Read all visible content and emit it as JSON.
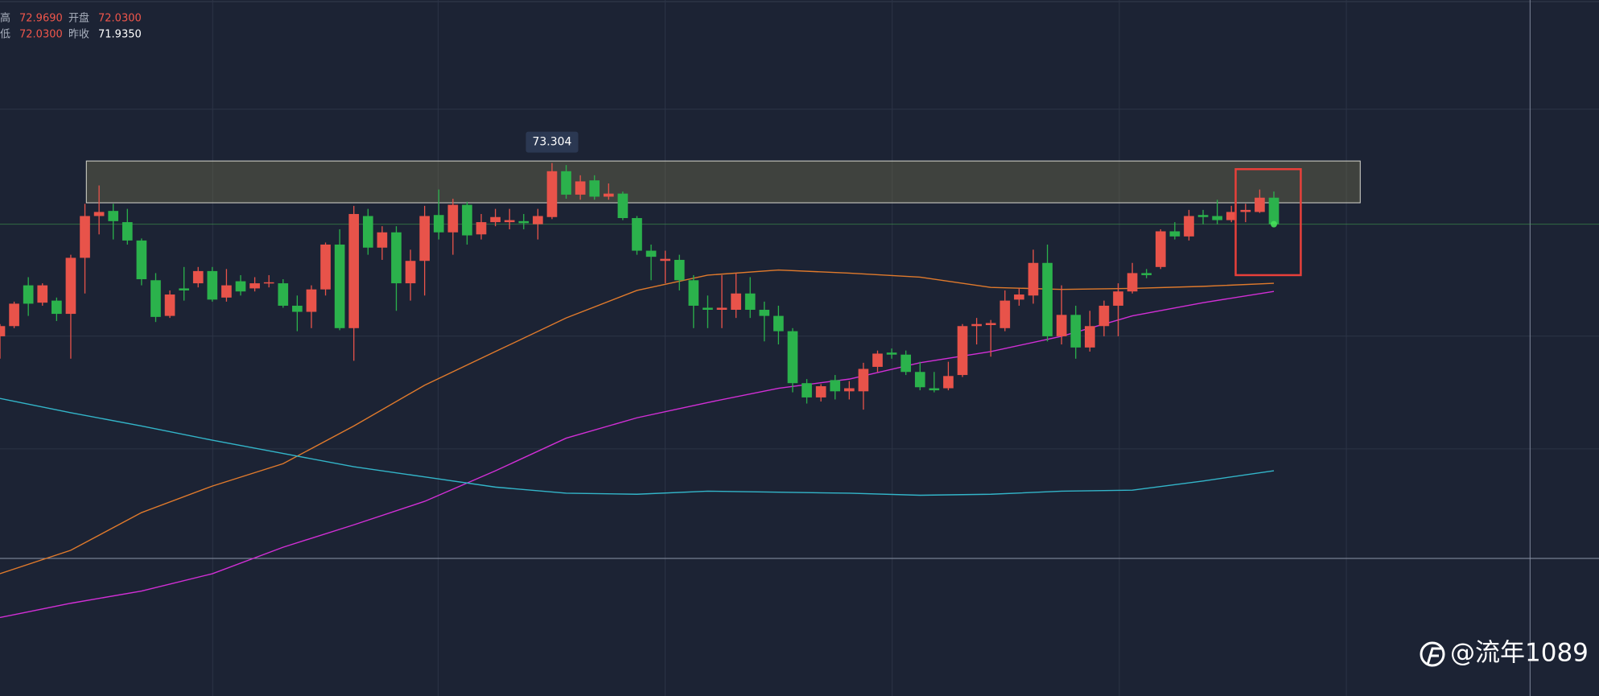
{
  "header": [
    {
      "label": "高",
      "value": "72.9690"
    },
    {
      "label": "开盘",
      "value": "72.0300"
    },
    {
      "label": "低",
      "value": "72.0300"
    },
    {
      "label": "昨收",
      "value": "71.9350"
    }
  ],
  "watermark": "@流年1089",
  "chart_data": {
    "type": "candlestick",
    "up_color": "#e8534a",
    "down_color": "#2bb24c",
    "xlim": [
      0,
      112.97
    ],
    "ylim": [
      67.028,
      75.224
    ],
    "open": [
      71.264,
      71.384,
      71.864,
      71.66,
      71.684,
      71.528,
      72.188,
      72.68,
      72.74,
      72.608,
      72.392,
      71.924,
      71.504,
      71.828,
      71.888,
      72.032,
      71.72,
      71.912,
      71.828,
      71.888,
      71.888,
      71.624,
      71.552,
      71.816,
      72.344,
      71.36,
      72.68,
      72.308,
      72.488,
      71.888,
      72.152,
      72.692,
      72.488,
      72.812,
      72.464,
      72.608,
      72.608,
      72.62,
      72.584,
      72.668,
      73.208,
      72.932,
      73.1,
      72.908,
      72.944,
      72.656,
      72.272,
      72.152,
      72.164,
      71.924,
      71.6,
      71.576,
      71.576,
      71.768,
      71.576,
      71.504,
      71.324,
      70.712,
      70.544,
      70.748,
      70.616,
      70.616,
      70.904,
      71.072,
      71.048,
      70.844,
      70.652,
      70.652,
      70.808,
      71.384,
      71.396,
      71.36,
      71.696,
      71.744,
      72.128,
      71.264,
      71.516,
      71.132,
      71.384,
      71.624,
      71.792,
      72.008,
      72.08,
      72.5,
      72.44,
      72.692,
      72.68,
      72.632,
      72.728,
      72.728,
      72.896
    ],
    "high": [
      71.408,
      71.672,
      71.96,
      71.888,
      71.72,
      72.224,
      72.824,
      73.04,
      72.824,
      72.764,
      72.416,
      72.008,
      71.804,
      72.08,
      72.08,
      72.08,
      72.056,
      71.984,
      71.96,
      71.984,
      71.936,
      71.744,
      71.864,
      72.368,
      72.524,
      72.8,
      72.764,
      72.56,
      72.56,
      72.284,
      72.8,
      72.992,
      72.884,
      72.848,
      72.704,
      72.764,
      72.764,
      72.704,
      72.764,
      73.304,
      73.28,
      73.16,
      73.16,
      73.064,
      72.968,
      72.68,
      72.344,
      72.272,
      72.224,
      71.984,
      71.744,
      71.984,
      72.008,
      71.96,
      71.672,
      71.624,
      71.36,
      70.76,
      70.7,
      70.808,
      70.736,
      70.952,
      71.096,
      71.12,
      71.096,
      70.964,
      70.844,
      70.964,
      71.408,
      71.48,
      71.456,
      71.804,
      71.828,
      72.284,
      72.344,
      71.864,
      71.624,
      71.564,
      71.684,
      71.888,
      72.128,
      72.056,
      72.524,
      72.608,
      72.752,
      72.752,
      72.872,
      72.8,
      72.824,
      72.992,
      72.969
    ],
    "low": [
      71.0,
      71.36,
      71.504,
      71.624,
      71.444,
      71.0,
      71.768,
      72.464,
      72.404,
      72.344,
      71.864,
      71.432,
      71.48,
      71.684,
      71.84,
      71.672,
      71.672,
      71.744,
      71.792,
      71.84,
      71.6,
      71.324,
      71.36,
      71.744,
      71.336,
      70.976,
      72.224,
      72.164,
      71.564,
      71.684,
      71.744,
      72.404,
      72.224,
      72.344,
      72.404,
      72.56,
      72.524,
      72.524,
      72.404,
      72.644,
      72.884,
      72.872,
      72.872,
      72.872,
      72.632,
      72.224,
      71.924,
      71.888,
      71.804,
      71.36,
      71.36,
      71.36,
      71.48,
      71.48,
      71.204,
      71.168,
      70.604,
      70.472,
      70.496,
      70.52,
      70.52,
      70.4,
      70.844,
      71.0,
      70.808,
      70.628,
      70.604,
      70.628,
      70.784,
      71.168,
      71.024,
      71.324,
      71.624,
      71.648,
      71.204,
      71.168,
      71.0,
      71.084,
      71.264,
      71.264,
      71.768,
      71.948,
      72.056,
      72.404,
      72.392,
      72.584,
      72.584,
      72.608,
      72.608,
      72.716,
      72.584
    ],
    "close": [
      71.384,
      71.648,
      71.648,
      71.864,
      71.528,
      72.188,
      72.68,
      72.728,
      72.62,
      72.392,
      71.936,
      71.492,
      71.756,
      71.804,
      72.032,
      71.696,
      71.864,
      71.792,
      71.888,
      71.9,
      71.624,
      71.552,
      71.816,
      72.344,
      71.36,
      72.704,
      72.308,
      72.488,
      71.888,
      72.152,
      72.68,
      72.488,
      72.812,
      72.452,
      72.608,
      72.668,
      72.632,
      72.596,
      72.68,
      73.208,
      72.932,
      73.088,
      72.908,
      72.944,
      72.656,
      72.272,
      72.2,
      72.176,
      71.924,
      71.624,
      71.576,
      71.6,
      71.768,
      71.576,
      71.504,
      71.324,
      70.712,
      70.544,
      70.676,
      70.616,
      70.652,
      70.88,
      71.06,
      71.048,
      70.844,
      70.664,
      70.628,
      70.796,
      71.384,
      71.408,
      71.42,
      71.684,
      71.756,
      72.128,
      71.264,
      71.516,
      71.132,
      71.384,
      71.624,
      71.792,
      72.008,
      71.984,
      72.5,
      72.44,
      72.68,
      72.668,
      72.632,
      72.728,
      72.752,
      72.896,
      72.584
    ],
    "high_label_index": 39,
    "series": [
      {
        "color": "#e07a2c",
        "x": [
          0,
          5,
          10,
          15,
          20,
          25,
          30,
          35,
          40,
          45,
          50,
          55,
          60,
          65,
          70,
          75,
          80,
          85,
          90
        ],
        "values": [
          68.468,
          68.744,
          69.188,
          69.5,
          69.764,
          70.208,
          70.688,
          71.084,
          71.48,
          71.804,
          71.984,
          72.044,
          72.008,
          71.96,
          71.84,
          71.816,
          71.828,
          71.852,
          71.888
        ]
      },
      {
        "color": "#d22fd6",
        "x": [
          0,
          5,
          10,
          15,
          20,
          25,
          30,
          35,
          40,
          45,
          50,
          55,
          60,
          65,
          70,
          75,
          80,
          85,
          90
        ],
        "values": [
          67.952,
          68.12,
          68.264,
          68.468,
          68.78,
          69.044,
          69.32,
          69.68,
          70.064,
          70.304,
          70.484,
          70.652,
          70.76,
          70.952,
          71.084,
          71.264,
          71.504,
          71.66,
          71.792
        ]
      },
      {
        "color": "#33b5c9",
        "x": [
          0,
          5,
          10,
          15,
          20,
          25,
          30,
          35,
          40,
          45,
          50,
          55,
          60,
          65,
          70,
          75,
          80,
          85,
          90
        ],
        "values": [
          70.532,
          70.364,
          70.208,
          70.04,
          69.884,
          69.728,
          69.608,
          69.488,
          69.416,
          69.404,
          69.44,
          69.428,
          69.416,
          69.392,
          69.404,
          69.44,
          69.452,
          69.56,
          69.68
        ]
      }
    ],
    "zone": {
      "x": [
        6.1,
        96.1
      ],
      "y": [
        72.836,
        73.328
      ]
    },
    "highlight": {
      "x": [
        87.3,
        91.9
      ],
      "y": [
        71.984,
        73.232
      ],
      "color": "#e8403a"
    },
    "crosshair": {
      "x": 108.1,
      "y": 68.648
    }
  }
}
